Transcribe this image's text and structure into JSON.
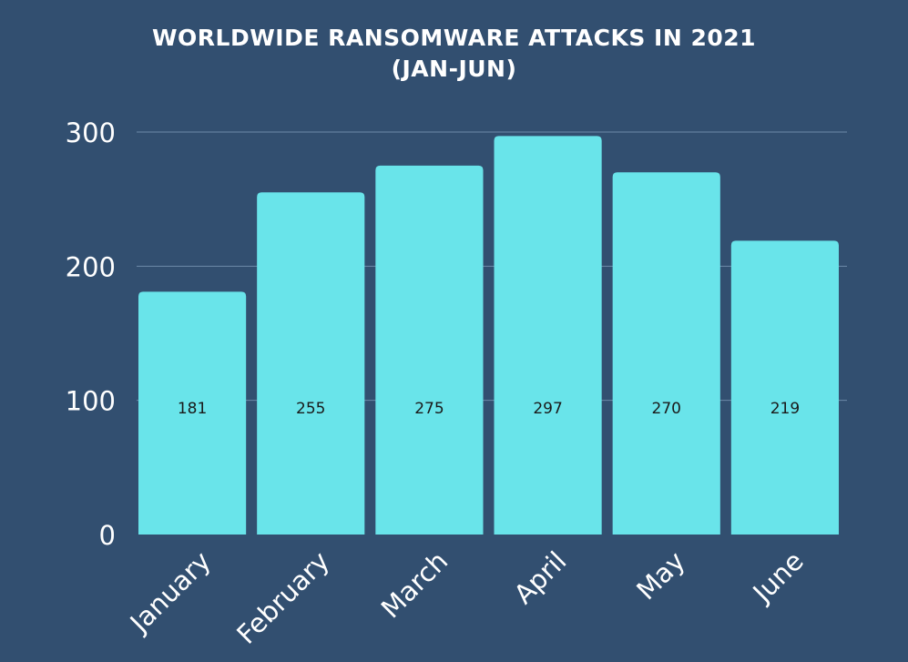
{
  "chart_data": {
    "type": "bar",
    "title_lines": [
      "WORLDWIDE RANSOMWARE ATTACKS IN 2021",
      "(JAN-JUN)"
    ],
    "categories": [
      "January",
      "February",
      "March",
      "April",
      "May",
      "June"
    ],
    "values": [
      181,
      255,
      275,
      297,
      270,
      219
    ],
    "data_labels": [
      "181",
      "255",
      "275",
      "297",
      "270",
      "219"
    ],
    "y_ticks": [
      "0",
      "100",
      "200",
      "300"
    ],
    "ylim": [
      0,
      300
    ],
    "grid": true,
    "colors": {
      "background": "#324f70",
      "bar": "#69e4ea",
      "gridline": "#6d8aa8",
      "text": "#ffffff",
      "data_label": "#1a1a1a"
    }
  }
}
